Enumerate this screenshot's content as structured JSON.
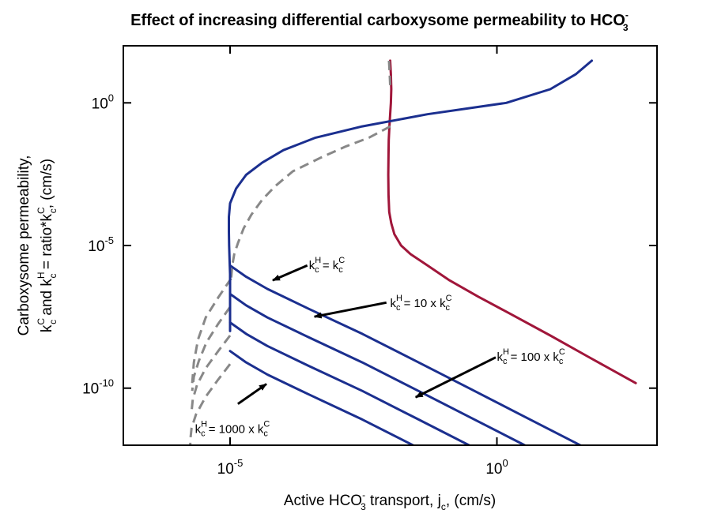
{
  "chart_data": {
    "type": "line",
    "title": {
      "main": "Effect of increasing differential carboxysome permeability to HCO",
      "sup": "-",
      "sub": "3"
    },
    "xlabel": {
      "pre": "Active HCO",
      "sup": "-",
      "sub": "3",
      "post": " transport, j",
      "sub2": "c",
      "post2": ", (cm/s)"
    },
    "ylabel": {
      "line1": "Carboxysome permeability,",
      "k1": "k",
      "k1_sup": "C",
      "k1_sub": "c",
      "mid": " and k",
      "k2_sup": "H",
      "k2_sub": "c",
      "post": " = ratio*k",
      "k3_sup": "C",
      "k3_sub": "c",
      "end": ", (cm/s)"
    },
    "x_scale": "log",
    "y_scale": "log",
    "xlim": [
      1e-07,
      1000.0
    ],
    "ylim": [
      1e-12,
      100
    ],
    "x_ticks": [
      {
        "value": 1e-05,
        "base": "10",
        "exp": "-5"
      },
      {
        "value": 1,
        "base": "10",
        "exp": "0"
      }
    ],
    "y_ticks": [
      {
        "value": 1,
        "base": "10",
        "exp": "0"
      },
      {
        "value": 1e-05,
        "base": "10",
        "exp": "-5"
      },
      {
        "value": 1e-10,
        "base": "10",
        "exp": "-10"
      }
    ],
    "grid": false,
    "legend": "none",
    "series": [
      {
        "color": "#a0163a",
        "style": "solid",
        "x": [
          0.01,
          0.0103,
          0.0105,
          0.0103,
          0.01,
          0.0097,
          0.0094,
          0.0093,
          0.0092,
          0.0093,
          0.0096,
          0.0105,
          0.012,
          0.016,
          0.024,
          0.05,
          0.13,
          0.45,
          1.8,
          10,
          50,
          400
        ],
        "y": [
          30,
          10,
          3,
          1,
          0.4,
          0.16,
          0.05,
          0.015,
          0.003,
          0.0006,
          0.00015,
          6e-05,
          2.5e-05,
          1e-05,
          5e-06,
          2e-06,
          6e-07,
          1.6e-07,
          4e-08,
          7e-09,
          1.3e-09,
          1.5e-10
        ]
      },
      {
        "color": "#888888",
        "style": "dashed",
        "x": [
          0.0095,
          0.0098,
          0.01
        ],
        "y": [
          30,
          10,
          4
        ]
      },
      {
        "color": "#888888",
        "style": "dashed",
        "x": [
          0.0101,
          0.004,
          0.0015,
          0.0005,
          0.00015,
          7e-05,
          4e-05,
          2.5e-05,
          1.8e-05,
          1.4e-05,
          1.2e-05,
          1.1e-05,
          1.05e-05
        ],
        "y": [
          0.15,
          0.06,
          0.03,
          0.012,
          0.004,
          0.0012,
          0.0004,
          0.00012,
          4e-05,
          1.2e-05,
          5e-06,
          2e-06,
          7e-07
        ]
      },
      {
        "color": "#888888",
        "style": "dashed",
        "x": [
          1.05e-05,
          6e-06,
          3.5e-06,
          2.5e-06,
          2.1e-06,
          1.95e-06
        ],
        "y": [
          7e-07,
          1.5e-07,
          3e-08,
          5e-09,
          8e-10,
          1.5e-10
        ]
      },
      {
        "color": "#888888",
        "style": "dashed",
        "x": [
          1e-05,
          6e-06,
          3.6e-06,
          2.6e-06,
          2.1e-06,
          1.95e-06
        ],
        "y": [
          7e-08,
          1.8e-08,
          4e-09,
          9e-10,
          2.5e-10,
          8e-11
        ]
      },
      {
        "color": "#888888",
        "style": "dashed",
        "x": [
          1e-05,
          6e-06,
          3.5e-06,
          2.4e-06,
          2e-06,
          1.9e-06
        ],
        "y": [
          7e-09,
          2e-09,
          5e-10,
          1.3e-10,
          4e-11,
          1.5e-11
        ]
      },
      {
        "color": "#888888",
        "style": "dashed",
        "x": [
          1e-05,
          6e-06,
          3.5e-06,
          2.3e-06,
          1.9e-06,
          1.8e-06,
          1.8e-06
        ],
        "y": [
          7e-10,
          2e-10,
          5e-11,
          1.2e-11,
          4e-12,
          1.5e-12,
          1e-12
        ]
      },
      {
        "color": "#1b2f8f",
        "style": "solid",
        "x": [
          60,
          30,
          10,
          1.5,
          0.05,
          0.003,
          0.0004,
          0.0001,
          4e-05,
          2e-05,
          1.3e-05,
          1e-05,
          9.5e-06,
          9.5e-06,
          9.6e-06,
          9.8e-06,
          1e-05,
          1e-05,
          1e-05,
          1e-05
        ],
        "y": [
          30,
          10,
          3,
          1,
          0.4,
          0.15,
          0.06,
          0.022,
          0.008,
          0.003,
          0.001,
          0.0003,
          0.0001,
          3e-05,
          1e-05,
          3e-06,
          1e-06,
          3e-07,
          1e-07,
          1e-08
        ]
      },
      {
        "color": "#1b2f8f",
        "style": "solid",
        "x": [
          1e-05,
          2e-05,
          5e-05,
          0.0003,
          0.003,
          0.03,
          0.3,
          3,
          30,
          300
        ],
        "y": [
          2e-06,
          8e-07,
          3e-07,
          6e-08,
          8e-09,
          9e-10,
          1e-10,
          1.1e-11,
          1.2e-12,
          1.3e-13
        ]
      },
      {
        "color": "#1b2f8f",
        "style": "solid",
        "x": [
          1e-05,
          2e-05,
          5e-05,
          0.0003,
          0.003,
          0.03,
          0.3,
          3,
          30
        ],
        "y": [
          2e-07,
          8e-08,
          3e-08,
          6e-09,
          8e-10,
          9e-11,
          1e-11,
          1.1e-12,
          1.2e-13
        ]
      },
      {
        "color": "#1b2f8f",
        "style": "solid",
        "x": [
          1e-05,
          2e-05,
          5e-05,
          0.0003,
          0.003,
          0.03,
          0.3,
          3
        ],
        "y": [
          2e-08,
          8e-09,
          3e-09,
          6e-10,
          8e-11,
          9e-12,
          1e-12,
          1.1e-13
        ]
      },
      {
        "color": "#1b2f8f",
        "style": "solid",
        "x": [
          1e-05,
          2e-05,
          5e-05,
          0.0003,
          0.003,
          0.03,
          0.3
        ],
        "y": [
          2e-09,
          8e-10,
          3e-10,
          6e-11,
          8e-12,
          9e-13,
          1e-13
        ]
      }
    ],
    "annotations": [
      {
        "label": "k",
        "sup": "H",
        "sub": "c",
        "rest": " = k",
        "sup2": "C",
        "sub2": "c",
        "text_at": [
          0.0003,
          1.5e-06
        ],
        "arrow_from": [
          0.00028,
          2e-06
        ],
        "arrow_to": [
          6.3e-05,
          6e-07
        ]
      },
      {
        "label": "k",
        "sup": "H",
        "sub": "c",
        "rest": " = 10 x k",
        "sup2": "C",
        "sub2": "c",
        "text_at": [
          0.01,
          7e-08
        ],
        "arrow_from": [
          0.0085,
          1e-07
        ],
        "arrow_to": [
          0.00038,
          3.2e-08
        ]
      },
      {
        "label": "k",
        "sup": "H",
        "sub": "c",
        "rest": " = 100 x k",
        "sup2": "C",
        "sub2": "c",
        "text_at": [
          1,
          9e-10
        ],
        "arrow_from": [
          0.95,
          1.2e-09
        ],
        "arrow_to": [
          0.03,
          4.8e-11
        ]
      },
      {
        "label": "k",
        "sup": "H",
        "sub": "c",
        "rest": " = 1000 x k",
        "sup2": "C",
        "sub2": "c",
        "text_at": [
          2.2e-06,
          2.7e-12
        ],
        "arrow_from": [
          1.4e-05,
          2.8e-11
        ],
        "arrow_to": [
          4.8e-05,
          1.4e-10
        ]
      }
    ]
  }
}
